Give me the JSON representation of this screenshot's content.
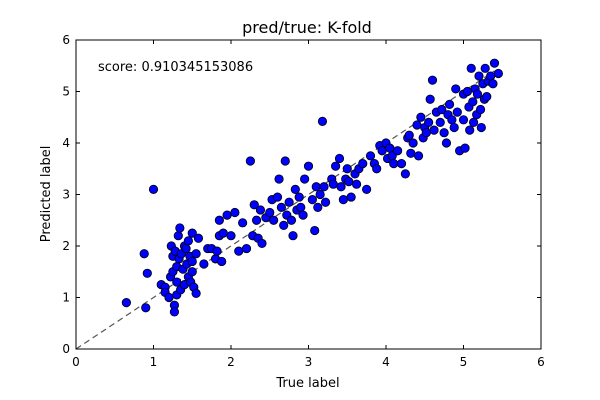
{
  "chart_data": {
    "type": "scatter",
    "title": "pred/true: K-fold",
    "xlabel": "True label",
    "ylabel": "Predicted label",
    "xlim": [
      0,
      6
    ],
    "ylim": [
      0,
      6
    ],
    "xticks": [
      0,
      1,
      2,
      3,
      4,
      5,
      6
    ],
    "yticks": [
      0,
      1,
      2,
      3,
      4,
      5,
      6
    ],
    "grid": false,
    "annotation": "score: 0.910345153086",
    "reference_line": {
      "style": "dashed",
      "from": [
        0,
        0
      ],
      "to": [
        5.4,
        5.4
      ],
      "color": "#555555"
    },
    "marker_color": "#0000ff",
    "marker_edge_color": "#000000",
    "series": [
      {
        "points": [
          [
            0.65,
            0.9
          ],
          [
            0.9,
            0.8
          ],
          [
            0.88,
            1.85
          ],
          [
            0.92,
            1.47
          ],
          [
            1.0,
            3.1
          ],
          [
            1.1,
            1.25
          ],
          [
            1.15,
            1.2
          ],
          [
            1.15,
            1.1
          ],
          [
            1.2,
            1.0
          ],
          [
            1.22,
            1.4
          ],
          [
            1.23,
            2.0
          ],
          [
            1.25,
            1.8
          ],
          [
            1.25,
            1.5
          ],
          [
            1.27,
            0.85
          ],
          [
            1.27,
            0.72
          ],
          [
            1.28,
            1.9
          ],
          [
            1.3,
            1.6
          ],
          [
            1.3,
            1.3
          ],
          [
            1.3,
            1.05
          ],
          [
            1.32,
            2.2
          ],
          [
            1.33,
            1.75
          ],
          [
            1.34,
            2.35
          ],
          [
            1.35,
            1.15
          ],
          [
            1.36,
            1.85
          ],
          [
            1.38,
            1.55
          ],
          [
            1.4,
            2.0
          ],
          [
            1.4,
            1.25
          ],
          [
            1.42,
            1.95
          ],
          [
            1.43,
            1.65
          ],
          [
            1.45,
            2.1
          ],
          [
            1.45,
            1.4
          ],
          [
            1.47,
            1.8
          ],
          [
            1.48,
            1.3
          ],
          [
            1.5,
            2.25
          ],
          [
            1.5,
            1.7
          ],
          [
            1.5,
            1.5
          ],
          [
            1.52,
            1.2
          ],
          [
            1.55,
            1.85
          ],
          [
            1.55,
            1.08
          ],
          [
            1.58,
            2.15
          ],
          [
            1.65,
            1.65
          ],
          [
            1.7,
            1.95
          ],
          [
            1.75,
            1.95
          ],
          [
            1.8,
            1.75
          ],
          [
            1.82,
            1.9
          ],
          [
            1.85,
            2.5
          ],
          [
            1.85,
            2.2
          ],
          [
            1.88,
            1.7
          ],
          [
            1.9,
            2.25
          ],
          [
            1.95,
            2.6
          ],
          [
            2.0,
            2.2
          ],
          [
            2.05,
            2.65
          ],
          [
            2.1,
            1.9
          ],
          [
            2.15,
            2.45
          ],
          [
            2.2,
            1.95
          ],
          [
            2.25,
            3.65
          ],
          [
            2.28,
            2.2
          ],
          [
            2.3,
            2.8
          ],
          [
            2.33,
            2.5
          ],
          [
            2.35,
            2.15
          ],
          [
            2.38,
            2.7
          ],
          [
            2.4,
            2.05
          ],
          [
            2.45,
            2.55
          ],
          [
            2.5,
            2.65
          ],
          [
            2.53,
            2.9
          ],
          [
            2.55,
            2.5
          ],
          [
            2.6,
            2.95
          ],
          [
            2.62,
            3.3
          ],
          [
            2.65,
            2.75
          ],
          [
            2.68,
            2.4
          ],
          [
            2.7,
            3.65
          ],
          [
            2.72,
            2.6
          ],
          [
            2.75,
            2.85
          ],
          [
            2.78,
            2.5
          ],
          [
            2.8,
            2.2
          ],
          [
            2.83,
            3.1
          ],
          [
            2.85,
            2.7
          ],
          [
            2.88,
            2.95
          ],
          [
            2.9,
            2.75
          ],
          [
            2.93,
            2.6
          ],
          [
            2.95,
            3.3
          ],
          [
            3.0,
            3.55
          ],
          [
            3.05,
            2.9
          ],
          [
            3.08,
            2.3
          ],
          [
            3.1,
            3.15
          ],
          [
            3.12,
            2.75
          ],
          [
            3.15,
            3.0
          ],
          [
            3.18,
            4.42
          ],
          [
            3.2,
            3.15
          ],
          [
            3.22,
            2.85
          ],
          [
            3.3,
            3.3
          ],
          [
            3.32,
            3.2
          ],
          [
            3.35,
            3.55
          ],
          [
            3.4,
            3.7
          ],
          [
            3.42,
            3.15
          ],
          [
            3.45,
            2.9
          ],
          [
            3.48,
            3.3
          ],
          [
            3.5,
            3.5
          ],
          [
            3.52,
            3.25
          ],
          [
            3.55,
            2.95
          ],
          [
            3.6,
            3.4
          ],
          [
            3.62,
            3.2
          ],
          [
            3.65,
            3.5
          ],
          [
            3.7,
            3.6
          ],
          [
            3.75,
            3.1
          ],
          [
            3.8,
            3.75
          ],
          [
            3.85,
            3.6
          ],
          [
            3.88,
            3.5
          ],
          [
            3.92,
            3.95
          ],
          [
            3.95,
            3.85
          ],
          [
            4.0,
            4.0
          ],
          [
            4.02,
            3.7
          ],
          [
            4.05,
            3.9
          ],
          [
            4.08,
            3.75
          ],
          [
            4.1,
            3.6
          ],
          [
            4.15,
            3.85
          ],
          [
            4.2,
            3.6
          ],
          [
            4.25,
            3.4
          ],
          [
            4.28,
            4.1
          ],
          [
            4.3,
            4.15
          ],
          [
            4.32,
            3.8
          ],
          [
            4.35,
            4.0
          ],
          [
            4.4,
            4.35
          ],
          [
            4.42,
            3.75
          ],
          [
            4.45,
            4.5
          ],
          [
            4.48,
            4.1
          ],
          [
            4.5,
            4.3
          ],
          [
            4.52,
            4.2
          ],
          [
            4.55,
            4.4
          ],
          [
            4.57,
            4.85
          ],
          [
            4.6,
            5.22
          ],
          [
            4.62,
            4.25
          ],
          [
            4.65,
            4.6
          ],
          [
            4.7,
            4.4
          ],
          [
            4.72,
            4.65
          ],
          [
            4.75,
            4.2
          ],
          [
            4.78,
            4.0
          ],
          [
            4.8,
            4.55
          ],
          [
            4.82,
            4.75
          ],
          [
            4.85,
            4.45
          ],
          [
            4.88,
            4.3
          ],
          [
            4.9,
            5.05
          ],
          [
            4.92,
            4.6
          ],
          [
            4.95,
            3.85
          ],
          [
            5.0,
            4.95
          ],
          [
            5.0,
            4.45
          ],
          [
            5.02,
            3.9
          ],
          [
            5.05,
            5.0
          ],
          [
            5.07,
            4.7
          ],
          [
            5.08,
            4.25
          ],
          [
            5.1,
            5.45
          ],
          [
            5.12,
            4.8
          ],
          [
            5.13,
            4.4
          ],
          [
            5.15,
            5.05
          ],
          [
            5.17,
            4.55
          ],
          [
            5.18,
            4.95
          ],
          [
            5.2,
            5.3
          ],
          [
            5.22,
            4.65
          ],
          [
            5.23,
            4.3
          ],
          [
            5.25,
            5.15
          ],
          [
            5.27,
            4.85
          ],
          [
            5.28,
            5.45
          ],
          [
            5.3,
            4.9
          ],
          [
            5.32,
            5.2
          ],
          [
            5.35,
            5.3
          ],
          [
            5.38,
            5.15
          ],
          [
            5.4,
            5.55
          ],
          [
            5.45,
            5.35
          ]
        ]
      }
    ]
  }
}
